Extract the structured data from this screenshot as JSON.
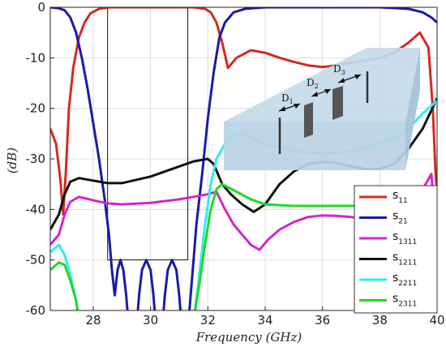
{
  "chart_data": {
    "type": "line",
    "xlabel": "Frequency (GHz)",
    "ylabel": "(dB)",
    "xlim": [
      26.5,
      40
    ],
    "ylim": [
      -60,
      0
    ],
    "x_ticks": [
      28,
      30,
      32,
      34,
      36,
      38,
      40
    ],
    "y_ticks": [
      0,
      -10,
      -20,
      -30,
      -40,
      -50,
      -60
    ],
    "grid": true,
    "legend_position": "bottom-right",
    "series": [
      {
        "name": "s11",
        "label_main": "s",
        "label_sub": "11",
        "color": "#d42a22",
        "points": [
          [
            26.5,
            -24
          ],
          [
            26.7,
            -27
          ],
          [
            26.85,
            -34
          ],
          [
            26.95,
            -41
          ],
          [
            27.05,
            -32
          ],
          [
            27.15,
            -20
          ],
          [
            27.3,
            -12
          ],
          [
            27.5,
            -6
          ],
          [
            27.7,
            -3
          ],
          [
            27.9,
            -1.2
          ],
          [
            28.2,
            -0.3
          ],
          [
            28.6,
            0
          ],
          [
            31.5,
            0
          ],
          [
            31.9,
            -0.3
          ],
          [
            32.1,
            -1
          ],
          [
            32.3,
            -3
          ],
          [
            32.5,
            -7
          ],
          [
            32.7,
            -12
          ],
          [
            33.0,
            -10
          ],
          [
            33.5,
            -8.5
          ],
          [
            34.0,
            -9
          ],
          [
            34.5,
            -10
          ],
          [
            35.0,
            -10.8
          ],
          [
            35.5,
            -11.5
          ],
          [
            36.0,
            -11.8
          ],
          [
            36.5,
            -11.5
          ],
          [
            37.0,
            -11
          ],
          [
            37.5,
            -10.5
          ],
          [
            38.0,
            -10
          ],
          [
            38.5,
            -9
          ],
          [
            39.0,
            -7
          ],
          [
            39.4,
            -5
          ],
          [
            39.7,
            -8
          ],
          [
            39.85,
            -20
          ],
          [
            39.95,
            -33
          ],
          [
            40.0,
            -37
          ]
        ]
      },
      {
        "name": "s21",
        "label_main": "s",
        "label_sub": "21",
        "color": "#1a1aa8",
        "points": [
          [
            26.5,
            0
          ],
          [
            26.8,
            -0.2
          ],
          [
            27.0,
            -0.6
          ],
          [
            27.2,
            -2
          ],
          [
            27.4,
            -5
          ],
          [
            27.6,
            -10
          ],
          [
            27.8,
            -16
          ],
          [
            28.0,
            -23
          ],
          [
            28.2,
            -30
          ],
          [
            28.4,
            -38
          ],
          [
            28.55,
            -45
          ],
          [
            28.65,
            -52
          ],
          [
            28.75,
            -57
          ],
          [
            28.85,
            -52
          ],
          [
            28.95,
            -50
          ],
          [
            29.05,
            -52
          ],
          [
            29.15,
            -57
          ],
          [
            29.25,
            -64
          ],
          [
            29.5,
            -64
          ],
          [
            29.6,
            -57
          ],
          [
            29.7,
            -52
          ],
          [
            29.85,
            -50
          ],
          [
            30.0,
            -52
          ],
          [
            30.1,
            -57
          ],
          [
            30.2,
            -64
          ],
          [
            30.4,
            -64
          ],
          [
            30.5,
            -57
          ],
          [
            30.6,
            -52
          ],
          [
            30.75,
            -50
          ],
          [
            30.9,
            -52
          ],
          [
            31.0,
            -57
          ],
          [
            31.1,
            -64
          ],
          [
            31.3,
            -64
          ],
          [
            31.4,
            -57
          ],
          [
            31.5,
            -50
          ],
          [
            31.6,
            -43
          ],
          [
            31.8,
            -33
          ],
          [
            32.0,
            -22
          ],
          [
            32.2,
            -13
          ],
          [
            32.4,
            -6
          ],
          [
            32.6,
            -3
          ],
          [
            32.9,
            -1
          ],
          [
            33.3,
            -0.3
          ],
          [
            34,
            0
          ],
          [
            38,
            0
          ],
          [
            39,
            -0.3
          ],
          [
            39.5,
            -1
          ],
          [
            39.8,
            -2
          ],
          [
            40.0,
            -3
          ]
        ]
      },
      {
        "name": "s1311",
        "label_main": "s",
        "label_sub": "1311",
        "color": "#d026d0",
        "points": [
          [
            26.5,
            -47
          ],
          [
            26.8,
            -45
          ],
          [
            27.0,
            -41
          ],
          [
            27.2,
            -38.5
          ],
          [
            27.5,
            -37.5
          ],
          [
            28.0,
            -38.2
          ],
          [
            28.5,
            -38.8
          ],
          [
            29.0,
            -39
          ],
          [
            30.0,
            -38.7
          ],
          [
            31.0,
            -38
          ],
          [
            31.5,
            -37.5
          ],
          [
            32.0,
            -37
          ],
          [
            32.3,
            -36.5
          ],
          [
            32.6,
            -40
          ],
          [
            32.9,
            -43
          ],
          [
            33.2,
            -45
          ],
          [
            33.5,
            -47
          ],
          [
            33.8,
            -48
          ],
          [
            34.1,
            -46
          ],
          [
            34.5,
            -44
          ],
          [
            35.0,
            -42.5
          ],
          [
            35.5,
            -41.5
          ],
          [
            36.0,
            -41.2
          ],
          [
            36.5,
            -41.3
          ],
          [
            37.0,
            -41.5
          ],
          [
            37.5,
            -42
          ],
          [
            38.0,
            -42
          ],
          [
            38.5,
            -41
          ],
          [
            39.0,
            -39
          ],
          [
            39.5,
            -36
          ],
          [
            39.8,
            -33
          ],
          [
            39.9,
            -40
          ],
          [
            40.0,
            -47
          ]
        ]
      },
      {
        "name": "s1211",
        "label_main": "s",
        "label_sub": "1211",
        "color": "#111111",
        "points": [
          [
            26.5,
            -44
          ],
          [
            26.8,
            -41
          ],
          [
            27.0,
            -37
          ],
          [
            27.2,
            -34.5
          ],
          [
            27.5,
            -33.8
          ],
          [
            28.0,
            -34.3
          ],
          [
            28.5,
            -34.8
          ],
          [
            29.0,
            -34.8
          ],
          [
            30.0,
            -33.5
          ],
          [
            31.0,
            -31.5
          ],
          [
            31.5,
            -30.5
          ],
          [
            32.0,
            -30
          ],
          [
            32.2,
            -31
          ],
          [
            32.5,
            -35
          ],
          [
            32.8,
            -37
          ],
          [
            33.2,
            -39
          ],
          [
            33.6,
            -40.5
          ],
          [
            34.0,
            -39
          ],
          [
            34.5,
            -35
          ],
          [
            35.0,
            -32.5
          ],
          [
            35.5,
            -31
          ],
          [
            36.0,
            -30.6
          ],
          [
            36.5,
            -30.8
          ],
          [
            37.0,
            -31.5
          ],
          [
            37.5,
            -32
          ],
          [
            38.0,
            -32
          ],
          [
            38.5,
            -31
          ],
          [
            39.0,
            -28
          ],
          [
            39.5,
            -24
          ],
          [
            40.0,
            -18
          ]
        ]
      },
      {
        "name": "s2211",
        "label_main": "s",
        "label_sub": "2211",
        "color": "#2cf0f0",
        "points": [
          [
            26.5,
            -48.5
          ],
          [
            26.8,
            -47
          ],
          [
            27.0,
            -49
          ],
          [
            27.2,
            -53
          ],
          [
            27.4,
            -58
          ],
          [
            27.5,
            -62
          ],
          [
            31.5,
            -62
          ],
          [
            31.7,
            -53
          ],
          [
            31.9,
            -43
          ],
          [
            32.1,
            -35
          ],
          [
            32.3,
            -30
          ],
          [
            32.6,
            -27
          ],
          [
            32.9,
            -25.5
          ],
          [
            33.2,
            -25
          ],
          [
            34,
            -27
          ],
          [
            35,
            -28.5
          ],
          [
            36,
            -29
          ],
          [
            37,
            -28.5
          ],
          [
            38,
            -27
          ],
          [
            38.5,
            -26
          ],
          [
            39,
            -24
          ],
          [
            39.5,
            -21
          ],
          [
            40,
            -18.5
          ]
        ]
      },
      {
        "name": "s2311",
        "label_main": "s",
        "label_sub": "2311",
        "color": "#22d922",
        "points": [
          [
            26.5,
            -52
          ],
          [
            26.8,
            -50.5
          ],
          [
            27.0,
            -51
          ],
          [
            27.2,
            -54
          ],
          [
            27.4,
            -58
          ],
          [
            27.5,
            -62
          ],
          [
            31.5,
            -62
          ],
          [
            31.7,
            -55
          ],
          [
            31.9,
            -47
          ],
          [
            32.1,
            -40
          ],
          [
            32.3,
            -36
          ],
          [
            32.5,
            -35
          ],
          [
            33.0,
            -36.5
          ],
          [
            33.5,
            -38
          ],
          [
            34.0,
            -39
          ],
          [
            35.0,
            -39.3
          ],
          [
            36.0,
            -39.3
          ],
          [
            37.0,
            -39.3
          ],
          [
            38.0,
            -39.3
          ],
          [
            39.0,
            -39.2
          ],
          [
            39.5,
            -39
          ],
          [
            39.8,
            -42
          ],
          [
            39.9,
            -50
          ],
          [
            40.0,
            -55
          ]
        ]
      }
    ],
    "filter_mask": {
      "x1": 28.5,
      "x2": 31.3,
      "y_top": 0,
      "y_bottom": -50
    },
    "inset_labels": [
      "D",
      "D",
      "D"
    ],
    "inset_label_subs": [
      "1",
      "2",
      "3"
    ]
  }
}
